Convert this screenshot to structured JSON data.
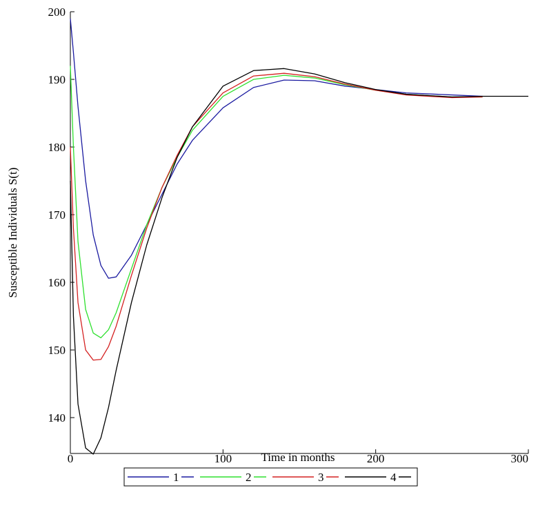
{
  "chart_data": {
    "type": "line",
    "x_label": "Time in months",
    "y_label": "Susceptible Individuals S(t)",
    "x": [
      0,
      2,
      5,
      10,
      15,
      20,
      25,
      30,
      40,
      50,
      60,
      70,
      80,
      100,
      120,
      140,
      160,
      180,
      200,
      220,
      250,
      270,
      300
    ],
    "series": [
      {
        "name": "1",
        "color": "#1a1aa0",
        "values": [
          199,
          194,
          186,
          175,
          167,
          162.5,
          160.6,
          160.8,
          164,
          168.5,
          173,
          177.5,
          181,
          185.8,
          188.8,
          189.9,
          189.8,
          189,
          188.5,
          188,
          187.7,
          187.5,
          null
        ]
      },
      {
        "name": "2",
        "color": "#2ee02e",
        "values": [
          192,
          180,
          166,
          156,
          152.5,
          151.8,
          153,
          155.5,
          162,
          168.5,
          174,
          178.5,
          182.5,
          187.5,
          190,
          190.6,
          190.2,
          189.2,
          188.4,
          187.8,
          187.4,
          187.4,
          null
        ]
      },
      {
        "name": "3",
        "color": "#d42020",
        "values": [
          180,
          168,
          157,
          150,
          148.5,
          148.6,
          150.5,
          153.5,
          161,
          168,
          174,
          178.8,
          183,
          188,
          190.5,
          190.9,
          190.4,
          189.3,
          188.4,
          187.7,
          187.3,
          187.4,
          null
        ]
      },
      {
        "name": "4",
        "color": "#000000",
        "values": [
          175,
          155,
          142,
          135.5,
          134.6,
          137,
          141.5,
          147,
          157,
          165.5,
          172.5,
          178.5,
          183,
          189,
          191.3,
          191.6,
          190.8,
          189.5,
          188.5,
          187.8,
          187.4,
          187.5,
          187.5
        ]
      }
    ],
    "xlim": [
      0,
      300
    ],
    "xticks": [
      0,
      100,
      200,
      300
    ],
    "ylim": [
      134.7,
      200
    ],
    "yticks": [
      140,
      150,
      160,
      170,
      180,
      190,
      200
    ],
    "legend": "bottom"
  }
}
